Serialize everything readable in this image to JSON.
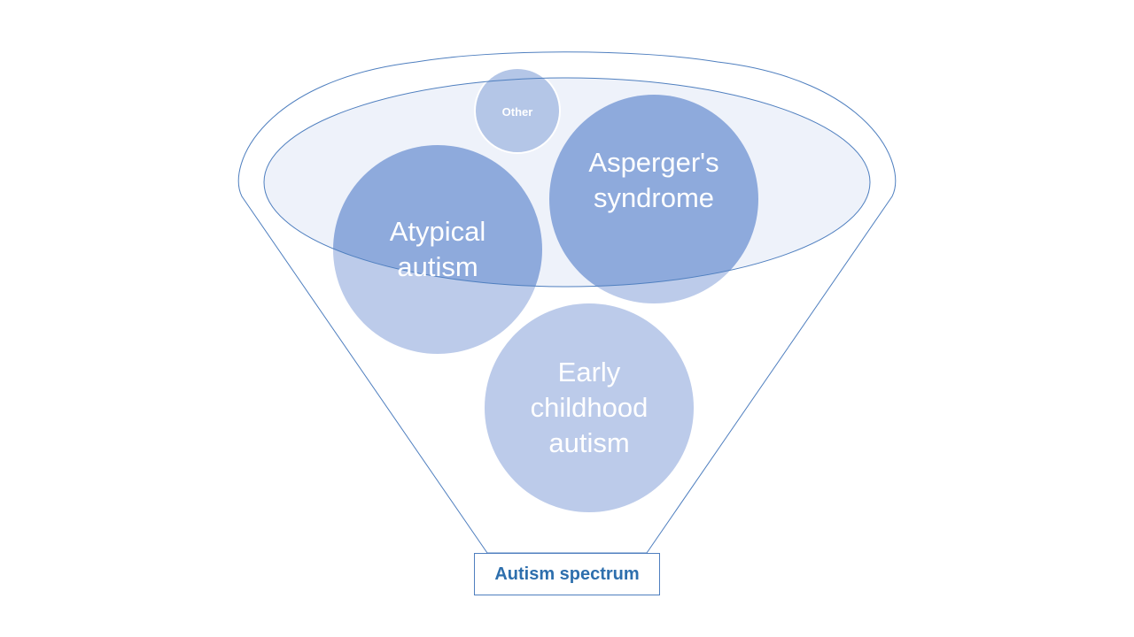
{
  "colors": {
    "outline": "#4f7fbf",
    "inner_fill": "#eef2fa",
    "circle_dark": "#8eaadc",
    "circle_light": "#bccbea",
    "text_light": "#ffffff",
    "label_text": "#2e6fad"
  },
  "circles": {
    "other": {
      "line1": "Other"
    },
    "asperger": {
      "line1": "Asperger's",
      "line2": "syndrome"
    },
    "atypical": {
      "line1": "Atypical",
      "line2": "autism"
    },
    "early": {
      "line1": "Early",
      "line2": "childhood",
      "line3": "autism"
    }
  },
  "funnel": {
    "label": "Autism spectrum"
  }
}
